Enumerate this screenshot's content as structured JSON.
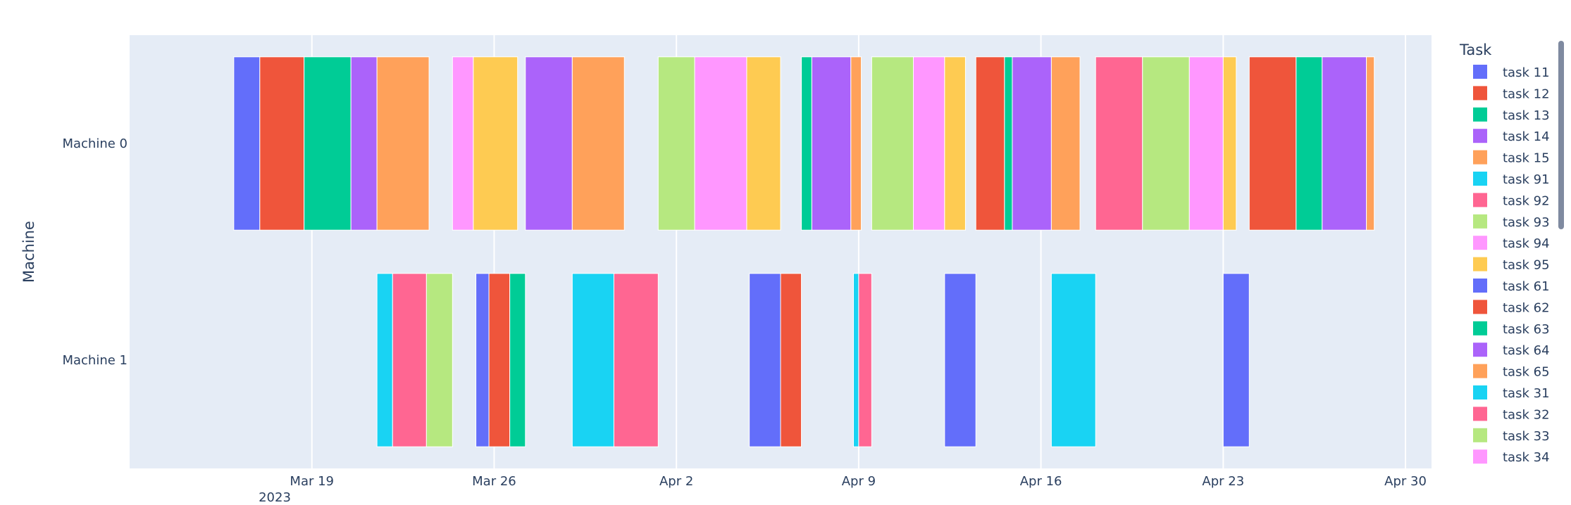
{
  "chart_data": {
    "type": "gantt",
    "xlabel": "",
    "ylabel": "Machine",
    "x_ticks": [
      "Mar 19",
      "Mar 26",
      "Apr 2",
      "Apr 9",
      "Apr 16",
      "Apr 23",
      "Apr 30"
    ],
    "x_tick_year": "2023",
    "x_range": [
      "2023-03-12",
      "2023-05-01"
    ],
    "grid": true,
    "categories": [
      "Machine 0",
      "Machine 1"
    ],
    "legend": {
      "title": "Task",
      "placement": "right"
    },
    "legend_items": [
      {
        "name": "task 11",
        "color": "#636EFA"
      },
      {
        "name": "task 12",
        "color": "#EF553B"
      },
      {
        "name": "task 13",
        "color": "#00CC96"
      },
      {
        "name": "task 14",
        "color": "#AB63FA"
      },
      {
        "name": "task 15",
        "color": "#FFA15A"
      },
      {
        "name": "task 91",
        "color": "#19D3F3"
      },
      {
        "name": "task 92",
        "color": "#FF6692"
      },
      {
        "name": "task 93",
        "color": "#B6E880"
      },
      {
        "name": "task 94",
        "color": "#FF97FF"
      },
      {
        "name": "task 95",
        "color": "#FECB52"
      },
      {
        "name": "task 61",
        "color": "#636EFA"
      },
      {
        "name": "task 62",
        "color": "#EF553B"
      },
      {
        "name": "task 63",
        "color": "#00CC96"
      },
      {
        "name": "task 64",
        "color": "#AB63FA"
      },
      {
        "name": "task 65",
        "color": "#FFA15A"
      },
      {
        "name": "task 31",
        "color": "#19D3F3"
      },
      {
        "name": "task 32",
        "color": "#FF6692"
      },
      {
        "name": "task 33",
        "color": "#B6E880"
      },
      {
        "name": "task 34",
        "color": "#FF97FF"
      }
    ],
    "bars": [
      {
        "machine": "Machine 0",
        "start": "2023-03-16",
        "end": "2023-03-17",
        "color": "#636EFA"
      },
      {
        "machine": "Machine 0",
        "start": "2023-03-17",
        "end": "2023-03-18.7",
        "color": "#EF553B"
      },
      {
        "machine": "Machine 0",
        "start": "2023-03-18.7",
        "end": "2023-03-20.5",
        "color": "#00CC96"
      },
      {
        "machine": "Machine 0",
        "start": "2023-03-20.5",
        "end": "2023-03-21.5",
        "color": "#AB63FA"
      },
      {
        "machine": "Machine 0",
        "start": "2023-03-21.5",
        "end": "2023-03-23.5",
        "color": "#FFA15A"
      },
      {
        "machine": "Machine 0",
        "start": "2023-03-24.4",
        "end": "2023-03-25.2",
        "color": "#FF97FF"
      },
      {
        "machine": "Machine 0",
        "start": "2023-03-25.2",
        "end": "2023-03-26.9",
        "color": "#FECB52"
      },
      {
        "machine": "Machine 0",
        "start": "2023-03-27.2",
        "end": "2023-03-29",
        "color": "#AB63FA"
      },
      {
        "machine": "Machine 0",
        "start": "2023-03-29",
        "end": "2023-03-31",
        "color": "#FFA15A"
      },
      {
        "machine": "Machine 0",
        "start": "2023-04-01.3",
        "end": "2023-04-02.7",
        "color": "#B6E880"
      },
      {
        "machine": "Machine 0",
        "start": "2023-04-02.7",
        "end": "2023-04-04.7",
        "color": "#FF97FF"
      },
      {
        "machine": "Machine 0",
        "start": "2023-04-04.7",
        "end": "2023-04-06",
        "color": "#FECB52"
      },
      {
        "machine": "Machine 0",
        "start": "2023-04-06.8",
        "end": "2023-04-07.2",
        "color": "#00CC96"
      },
      {
        "machine": "Machine 0",
        "start": "2023-04-07.2",
        "end": "2023-04-08.7",
        "color": "#AB63FA"
      },
      {
        "machine": "Machine 0",
        "start": "2023-04-08.7",
        "end": "2023-04-09.1",
        "color": "#FFA15A"
      },
      {
        "machine": "Machine 0",
        "start": "2023-04-09.5",
        "end": "2023-04-11.1",
        "color": "#B6E880"
      },
      {
        "machine": "Machine 0",
        "start": "2023-04-11.1",
        "end": "2023-04-12.3",
        "color": "#FF97FF"
      },
      {
        "machine": "Machine 0",
        "start": "2023-04-12.3",
        "end": "2023-04-13.1",
        "color": "#FECB52"
      },
      {
        "machine": "Machine 0",
        "start": "2023-04-13.5",
        "end": "2023-04-14.6",
        "color": "#EF553B"
      },
      {
        "machine": "Machine 0",
        "start": "2023-04-14.6",
        "end": "2023-04-14.9",
        "color": "#00CC96"
      },
      {
        "machine": "Machine 0",
        "start": "2023-04-14.9",
        "end": "2023-04-16.4",
        "color": "#AB63FA"
      },
      {
        "machine": "Machine 0",
        "start": "2023-04-16.4",
        "end": "2023-04-17.5",
        "color": "#FFA15A"
      },
      {
        "machine": "Machine 0",
        "start": "2023-04-18.1",
        "end": "2023-04-19.9",
        "color": "#FF6692"
      },
      {
        "machine": "Machine 0",
        "start": "2023-04-19.9",
        "end": "2023-04-21.7",
        "color": "#B6E880"
      },
      {
        "machine": "Machine 0",
        "start": "2023-04-21.7",
        "end": "2023-04-23",
        "color": "#FF97FF"
      },
      {
        "machine": "Machine 0",
        "start": "2023-04-23",
        "end": "2023-04-23.5",
        "color": "#FECB52"
      },
      {
        "machine": "Machine 0",
        "start": "2023-04-24",
        "end": "2023-04-25.8",
        "color": "#EF553B"
      },
      {
        "machine": "Machine 0",
        "start": "2023-04-25.8",
        "end": "2023-04-26.8",
        "color": "#00CC96"
      },
      {
        "machine": "Machine 0",
        "start": "2023-04-26.8",
        "end": "2023-04-28.5",
        "color": "#AB63FA"
      },
      {
        "machine": "Machine 0",
        "start": "2023-04-28.5",
        "end": "2023-04-28.8",
        "color": "#FFA15A"
      },
      {
        "machine": "Machine 1",
        "start": "2023-03-21.5",
        "end": "2023-03-22.1",
        "color": "#19D3F3"
      },
      {
        "machine": "Machine 1",
        "start": "2023-03-22.1",
        "end": "2023-03-23.4",
        "color": "#FF6692"
      },
      {
        "machine": "Machine 1",
        "start": "2023-03-23.4",
        "end": "2023-03-24.4",
        "color": "#B6E880"
      },
      {
        "machine": "Machine 1",
        "start": "2023-03-25.3",
        "end": "2023-03-25.8",
        "color": "#636EFA"
      },
      {
        "machine": "Machine 1",
        "start": "2023-03-25.8",
        "end": "2023-03-26.6",
        "color": "#EF553B"
      },
      {
        "machine": "Machine 1",
        "start": "2023-03-26.6",
        "end": "2023-03-27.2",
        "color": "#00CC96"
      },
      {
        "machine": "Machine 1",
        "start": "2023-03-29",
        "end": "2023-03-30.6",
        "color": "#19D3F3"
      },
      {
        "machine": "Machine 1",
        "start": "2023-03-30.6",
        "end": "2023-04-01.3",
        "color": "#FF6692"
      },
      {
        "machine": "Machine 1",
        "start": "2023-04-04.8",
        "end": "2023-04-06",
        "color": "#636EFA"
      },
      {
        "machine": "Machine 1",
        "start": "2023-04-06",
        "end": "2023-04-06.8",
        "color": "#EF553B"
      },
      {
        "machine": "Machine 1",
        "start": "2023-04-08.8",
        "end": "2023-04-09",
        "color": "#19D3F3"
      },
      {
        "machine": "Machine 1",
        "start": "2023-04-09",
        "end": "2023-04-09.5",
        "color": "#FF6692"
      },
      {
        "machine": "Machine 1",
        "start": "2023-04-12.3",
        "end": "2023-04-13.5",
        "color": "#636EFA"
      },
      {
        "machine": "Machine 1",
        "start": "2023-04-16.4",
        "end": "2023-04-18.1",
        "color": "#19D3F3"
      },
      {
        "machine": "Machine 1",
        "start": "2023-04-23",
        "end": "2023-04-24",
        "color": "#636EFA"
      }
    ]
  }
}
